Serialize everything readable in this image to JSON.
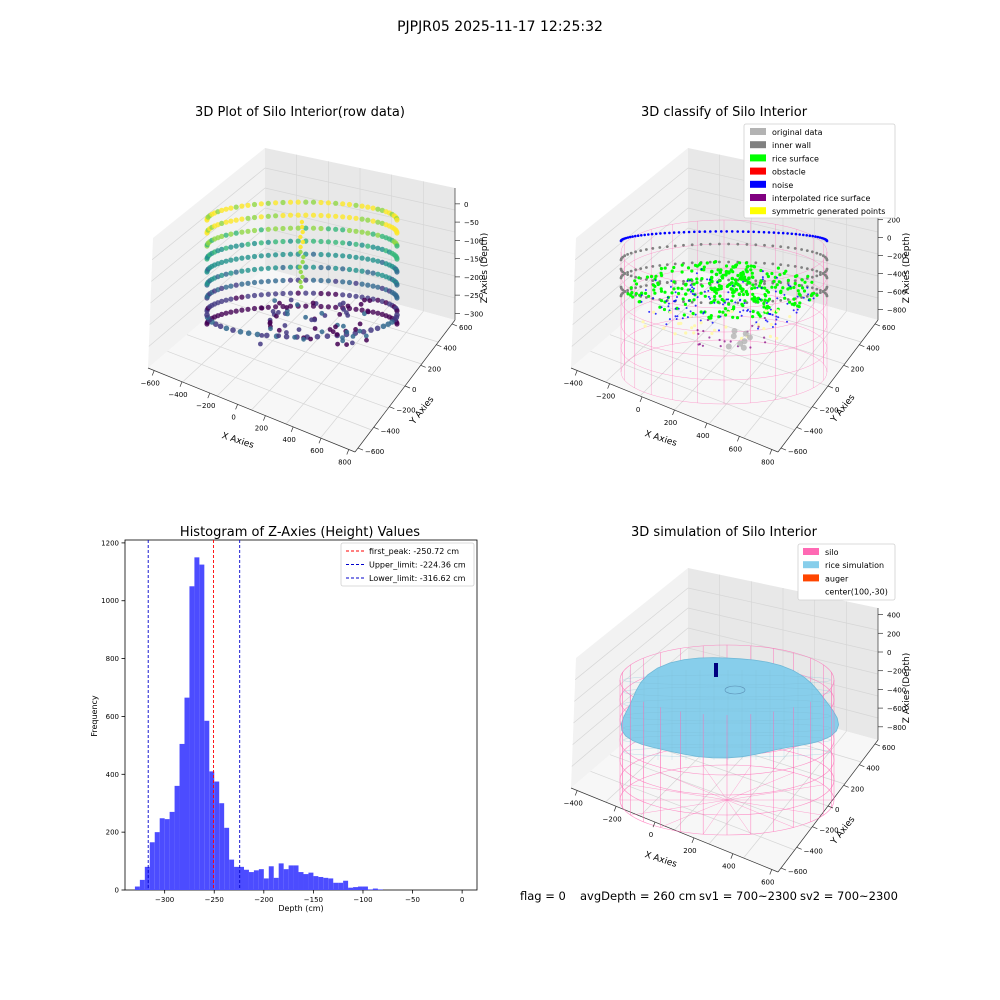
{
  "suptitle": "PJPJR05 2025-11-17 12:25:32",
  "colors": {
    "rice_surface": "#00ff00",
    "obstacle": "#ff0000",
    "noise": "#0000ff",
    "inner_wall": "#808080",
    "original_data": "#b3b3b3",
    "interpolated_rice_surface": "#800080",
    "symmetric_generated_points": "#ffff00",
    "silo": "#ff69b4",
    "rice_simulation": "#87ceeb",
    "auger": "#ff4500",
    "hist_bar": "#4c4cff"
  },
  "chart_data": [
    {
      "type": "scatter",
      "title": "3D Plot of Silo Interior(row data)",
      "xlabel": "X Axies",
      "ylabel": "Y Axies",
      "zlabel": "Z Axies (Depth)",
      "x_ticks": [
        "−600",
        "−400",
        "−200",
        "0",
        "200",
        "400",
        "600",
        "800"
      ],
      "y_ticks": [
        "−600",
        "−400",
        "−200",
        "0",
        "200",
        "400",
        "600"
      ],
      "z_ticks": [
        "0",
        "−50",
        "−100",
        "−150",
        "−200",
        "−250",
        "−300"
      ],
      "colormap": "viridis"
    },
    {
      "type": "scatter",
      "title": "3D classify of Silo Interior",
      "xlabel": "X Axies",
      "ylabel": "Y Axies",
      "zlabel": "Z Axies (Depth)",
      "x_ticks": [
        "−400",
        "−200",
        "0",
        "200",
        "400",
        "600",
        "800"
      ],
      "y_ticks": [
        "−600",
        "−400",
        "−200",
        "0",
        "200",
        "400",
        "600"
      ],
      "z_ticks": [
        "200",
        "0",
        "−200",
        "−400",
        "−600",
        "−800"
      ],
      "z_extra_tick": "400",
      "legend": [
        "original data",
        "inner wall",
        "rice surface",
        "obstacle",
        "noise",
        "interpolated rice surface",
        "symmetric generated points"
      ],
      "legend_colors": [
        "#b3b3b3",
        "#808080",
        "#00ff00",
        "#ff0000",
        "#0000ff",
        "#800080",
        "#ffff00"
      ],
      "legend_placement": "top-right"
    },
    {
      "type": "bar",
      "title": "Histogram of Z-Axies (Height) Values",
      "xlabel": "Depth (cm)",
      "ylabel": "Frequency",
      "bin_start": -330,
      "bin_width": 5,
      "values": [
        12,
        35,
        80,
        165,
        200,
        248,
        245,
        270,
        360,
        505,
        665,
        1050,
        1150,
        1125,
        585,
        410,
        375,
        300,
        215,
        105,
        80,
        80,
        70,
        62,
        68,
        72,
        40,
        82,
        42,
        92,
        72,
        85,
        85,
        62,
        55,
        60,
        48,
        45,
        42,
        40,
        25,
        25,
        32,
        8,
        10,
        12,
        12,
        2,
        5,
        2
      ],
      "xlim": [
        -340,
        15
      ],
      "ylim": [
        0,
        1210
      ],
      "x_ticks": [
        -300,
        -250,
        -200,
        -150,
        -100,
        -50,
        0
      ],
      "x_tick_labels": [
        "−300",
        "−250",
        "−200",
        "−150",
        "−100",
        "−50",
        "0"
      ],
      "y_ticks": [
        0,
        200,
        400,
        600,
        800,
        1000,
        1200
      ],
      "vlines": [
        {
          "x": -250.72,
          "label": "first_peak: -250.72 cm",
          "color": "#ff0000"
        },
        {
          "x": -224.36,
          "label": "Upper_limit: -224.36 cm",
          "color": "#0000cc"
        },
        {
          "x": -316.62,
          "label": "Lower_limit: -316.62 cm",
          "color": "#0000cc"
        }
      ],
      "legend_placement": "top-right"
    },
    {
      "type": "area",
      "title": "3D simulation of Silo Interior",
      "xlabel": "X Axies",
      "ylabel": "Y Axies",
      "zlabel": "Z Axies (Depth)",
      "x_ticks": [
        "−400",
        "−200",
        "0",
        "200",
        "400",
        "600"
      ],
      "y_ticks": [
        "−600",
        "−400",
        "−200",
        "0",
        "200",
        "400",
        "600"
      ],
      "z_ticks": [
        "400",
        "200",
        "0",
        "−200",
        "−400",
        "−600",
        "−800"
      ],
      "legend": [
        "silo",
        "rice simulation",
        "auger",
        "center(100,-30)"
      ],
      "legend_colors": [
        "#ff69b4",
        "#87ceeb",
        "#ff4500",
        ""
      ],
      "legend_placement": "top-right"
    }
  ],
  "footer": {
    "flag": "flag = 0",
    "avg_depth": "avgDepth = 260 cm",
    "sv1": "sv1 = 700~2300",
    "sv2": "sv2 = 700~2300"
  }
}
